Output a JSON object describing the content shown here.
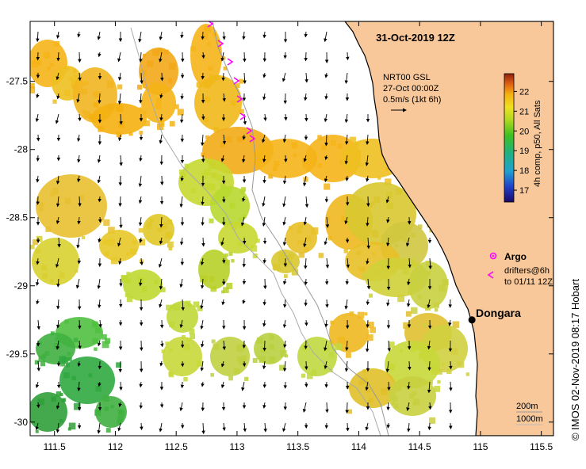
{
  "map": {
    "title": "31-Oct-2019 12Z",
    "x_axis": {
      "range": [
        111.3,
        115.6
      ],
      "ticks": [
        111.5,
        112,
        112.5,
        113,
        113.5,
        114,
        114.5,
        115,
        115.5
      ],
      "tick_labels": [
        "111.5",
        "112",
        "112.5",
        "113",
        "113.5",
        "114",
        "114.5",
        "115",
        "115.5"
      ]
    },
    "y_axis": {
      "range": [
        -30.1,
        -27.06
      ],
      "ticks": [
        -27.5,
        -28,
        -28.5,
        -29,
        -29.5,
        -30
      ],
      "tick_labels": [
        "-27.5",
        "-28",
        "-28.5",
        "-29",
        "-29.5",
        "-30"
      ]
    },
    "current_info": {
      "line1": "NRT00 GSL",
      "line2": "27-Oct 00:00Z",
      "line3": "0.5m/s (1kt 6h)"
    },
    "colorbar": {
      "label": "4h comp, p50, All Sats",
      "ticks": [
        17,
        18,
        19,
        20,
        21,
        22
      ],
      "tick_labels": [
        "17",
        "18",
        "19",
        "20",
        "21",
        "22"
      ],
      "range": [
        16.4,
        22.9
      ]
    },
    "legend": {
      "argo_label": "Argo",
      "drifters_line1": "drifters@6h",
      "drifters_line2": "to 01/11 12Z"
    },
    "place": {
      "name": "Dongara",
      "lon": 114.93,
      "lat": -29.25
    },
    "isobaths": {
      "label_200": "200m",
      "label_1000": "1000m"
    },
    "credit": "© IMOS 02-Nov-2019 08:17 Hobart",
    "colors": {
      "land": "#f8c89a",
      "coast": "#000000",
      "drifter": "#ff00ff",
      "isobath": "#999999"
    }
  }
}
